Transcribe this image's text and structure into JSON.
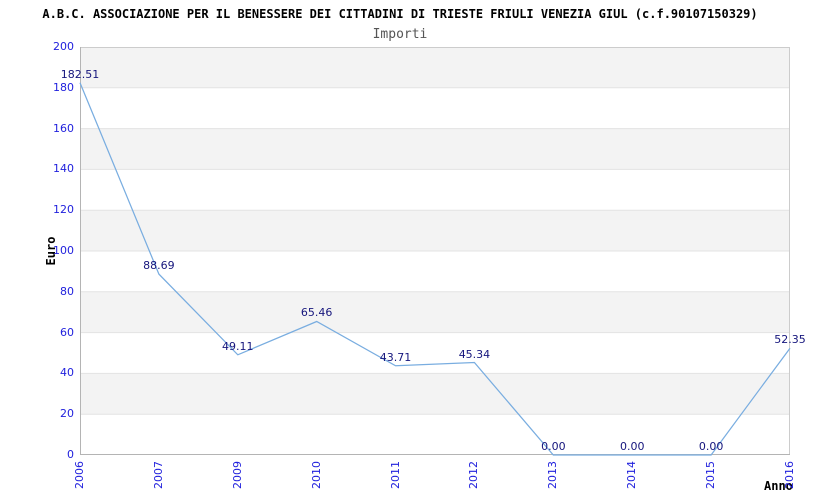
{
  "header": {
    "title": "A.B.C. ASSOCIAZIONE PER IL BENESSERE DEI CITTADINI DI TRIESTE FRIULI VENEZIA GIUL (c.f.90107150329)",
    "subtitle": "Importi"
  },
  "chart_data": {
    "type": "line",
    "title": "Importi",
    "xlabel": "Anno",
    "ylabel": "Euro",
    "categories": [
      "2006",
      "2007",
      "2009",
      "2010",
      "2011",
      "2012",
      "2013",
      "2014",
      "2015",
      "2016"
    ],
    "values": [
      182.51,
      88.69,
      49.11,
      65.46,
      43.71,
      45.34,
      0,
      0,
      0,
      52.35
    ],
    "point_labels": [
      "182.51",
      "88.69",
      "49.11",
      "65.46",
      "43.71",
      "45.34",
      "0.00",
      "0.00",
      "0.00",
      "52.35"
    ],
    "ylim": [
      0,
      200
    ],
    "ytick_step": 20,
    "grid": "horizontal-bands-alternating",
    "legend": "none",
    "colors": {
      "line": "#79ade0",
      "tick_labels": "#2121dd",
      "point_labels": "#16167d",
      "band_fill": "#f3f3f3",
      "grid_line": "#e3e3e3",
      "plot_border": "#cccccc",
      "axis_line": "#b4b4b4",
      "title": "#000000",
      "subtitle": "#555555"
    }
  }
}
